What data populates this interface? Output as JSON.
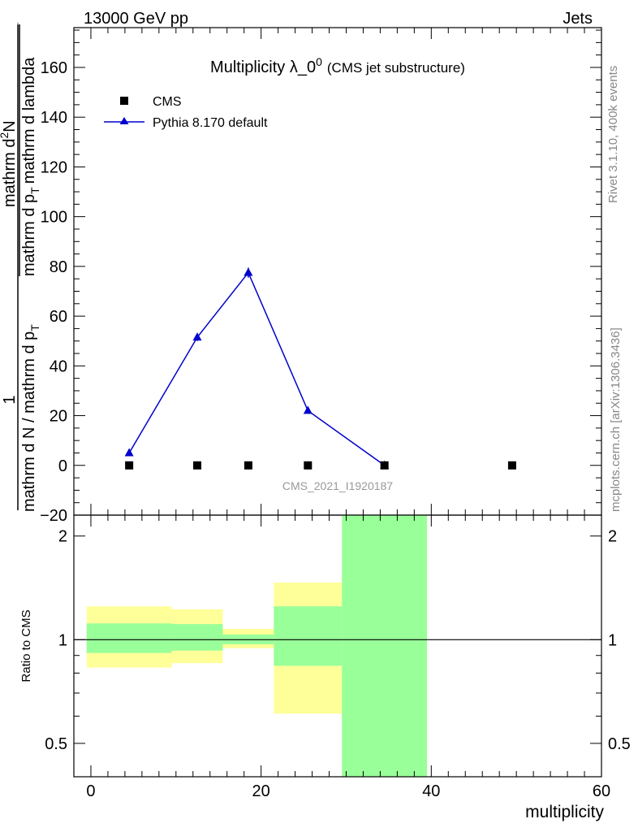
{
  "header": {
    "left": "13000 GeV pp",
    "right": "Jets"
  },
  "side_labels": {
    "rivet": "Rivet 3.1.10,  400k events",
    "mcplots": "mcplots.cern.ch [arXiv:1306.3436]"
  },
  "chart_data": [
    {
      "type": "line",
      "title": "Multiplicity λ_0",
      "title_sup": "0",
      "title_note": "(CMS jet substructure)",
      "watermark": "CMS_2021_I1920187",
      "ylabel": {
        "prefactor": "1",
        "denominator": "mathrm d N / mathrm d p",
        "denominator_sub": "T",
        "numerator": "mathrm d",
        "numerator_sup": "2",
        "numerator_rest": "N",
        "fraction_denominator": "mathrm d p",
        "fraction_denominator_sub": "T",
        "fraction_denominator_rest": "mathrm d lambda"
      },
      "xlim": [
        -2,
        60
      ],
      "ylim": [
        -20,
        176
      ],
      "y_ticks": [
        -20,
        0,
        20,
        40,
        60,
        80,
        100,
        120,
        140,
        160
      ],
      "y_tick_labels": [
        "−20",
        "0",
        "20",
        "40",
        "60",
        "80",
        "100",
        "120",
        "140",
        "160"
      ],
      "grid": false,
      "legend_position": "top-left",
      "series": [
        {
          "name": "CMS",
          "marker": "square",
          "color": "#000000",
          "x": [
            4.5,
            12.5,
            18.5,
            25.5,
            34.5,
            49.5
          ],
          "y": [
            0,
            0,
            0,
            0,
            0,
            0
          ]
        },
        {
          "name": "Pythia 8.170 default",
          "marker": "triangle",
          "color": "#0000cc",
          "x": [
            4.5,
            12.5,
            18.5,
            25.5,
            34.5
          ],
          "y": [
            5,
            51.5,
            77.5,
            22,
            0
          ],
          "yerr": [
            0.5,
            1.5,
            2.0,
            0.7,
            0.2
          ]
        }
      ]
    },
    {
      "type": "area",
      "ylabel": "Ratio to CMS",
      "xlabel": "multiplicity",
      "scale": "log",
      "ylim": [
        0.4,
        2.3
      ],
      "xlim": [
        -2,
        60
      ],
      "x_ticks": [
        0,
        20,
        40,
        60
      ],
      "y_ticks": [
        0.5,
        1,
        2
      ],
      "y_tick_labels": [
        "0.5",
        "1",
        "2"
      ],
      "reference_line": 1,
      "bands": {
        "stat_color": "#99ff99",
        "syst_color": "#ffff99",
        "bins": [
          {
            "x0": -0.5,
            "x1": 9.5,
            "stat": [
              0.915,
              1.115
            ],
            "total": [
              0.83,
              1.25
            ]
          },
          {
            "x0": 9.5,
            "x1": 15.5,
            "stat": [
              0.93,
              1.11
            ],
            "total": [
              0.855,
              1.225
            ]
          },
          {
            "x0": 15.5,
            "x1": 21.5,
            "stat": [
              0.97,
              1.035
            ],
            "total": [
              0.945,
              1.075
            ]
          },
          {
            "x0": 21.5,
            "x1": 29.5,
            "stat": [
              0.84,
              1.25
            ],
            "total": [
              0.61,
              1.465
            ]
          },
          {
            "x0": 29.5,
            "x1": 39.5,
            "stat": [
              0.4,
              2.3
            ],
            "total": [
              0.4,
              2.3
            ]
          }
        ]
      }
    }
  ]
}
